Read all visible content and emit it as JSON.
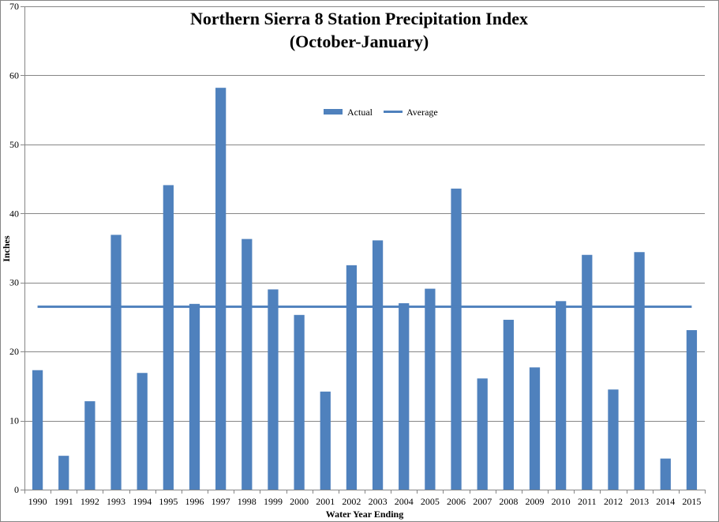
{
  "chart_data": {
    "type": "bar",
    "title": "Northern Sierra 8 Station Precipitation Index",
    "subtitle": "(October-January)",
    "xlabel": "Water Year Ending",
    "ylabel": "Inches",
    "ylim": [
      0,
      70
    ],
    "yticks": [
      0,
      10,
      20,
      30,
      40,
      50,
      60,
      70
    ],
    "grid": true,
    "legend_position": "top-center",
    "categories": [
      "1990",
      "1991",
      "1992",
      "1993",
      "1994",
      "1995",
      "1996",
      "1997",
      "1998",
      "1999",
      "2000",
      "2001",
      "2002",
      "2003",
      "2004",
      "2005",
      "2006",
      "2007",
      "2008",
      "2009",
      "2010",
      "2011",
      "2012",
      "2013",
      "2014",
      "2015"
    ],
    "series": [
      {
        "name": "Actual",
        "kind": "bar",
        "color": "#4f81bd",
        "values": [
          17.3,
          4.9,
          12.8,
          36.9,
          16.9,
          44.1,
          26.9,
          58.2,
          36.3,
          29.0,
          25.3,
          14.2,
          32.5,
          36.1,
          27.0,
          29.1,
          43.6,
          16.1,
          24.6,
          17.7,
          27.3,
          34.0,
          14.5,
          34.4,
          4.5,
          23.1
        ]
      },
      {
        "name": "Average",
        "kind": "line",
        "color": "#4f81bd",
        "value": 26.5
      }
    ]
  }
}
